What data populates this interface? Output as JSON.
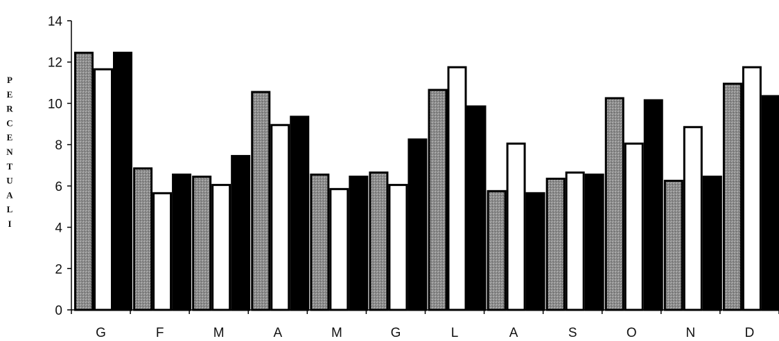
{
  "chart_data": {
    "type": "bar",
    "title": "",
    "xlabel": "",
    "ylabel": "PERCENTUALI",
    "categories": [
      "G",
      "F",
      "M",
      "A",
      "M",
      "G",
      "L",
      "A",
      "S",
      "O",
      "N",
      "D"
    ],
    "yticks": [
      "0",
      "2",
      "4",
      "6",
      "8",
      "10",
      "12",
      "14"
    ],
    "ylim": [
      0,
      14
    ],
    "grid": false,
    "legend": "none",
    "series": [
      {
        "values": [
          12.5,
          6.9,
          6.5,
          10.6,
          6.6,
          6.7,
          10.7,
          5.8,
          6.4,
          10.3,
          6.3,
          11.0
        ],
        "color": "#8c8c8c"
      },
      {
        "values": [
          11.7,
          5.7,
          6.1,
          9.0,
          5.9,
          6.1,
          11.8,
          8.1,
          6.7,
          8.1,
          8.9,
          11.8
        ],
        "color": "#ffffff"
      },
      {
        "values": [
          12.5,
          6.6,
          7.5,
          9.4,
          6.5,
          8.3,
          9.9,
          5.7,
          6.6,
          10.2,
          6.5,
          10.4
        ],
        "color": "#000000"
      }
    ]
  }
}
